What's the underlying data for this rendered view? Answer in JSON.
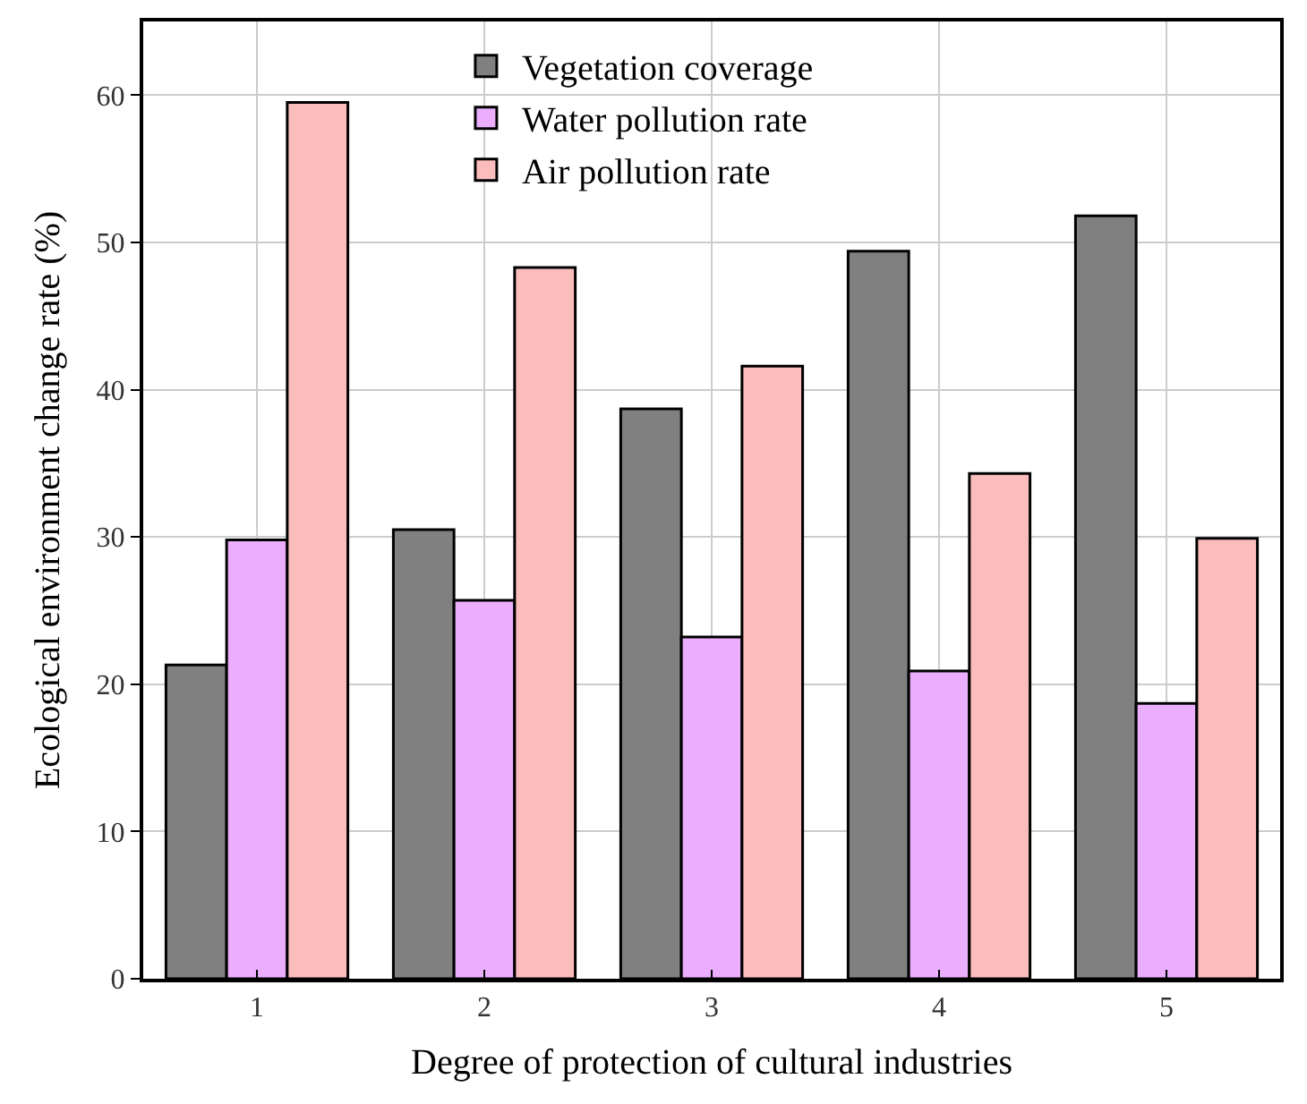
{
  "chart_data": {
    "type": "bar",
    "xlabel": "Degree of protection of cultural industries",
    "ylabel": "Ecological environment change rate (%)",
    "categories": [
      "1",
      "2",
      "3",
      "4",
      "5"
    ],
    "series": [
      {
        "name": "Vegetation coverage",
        "color": "#808080",
        "values": [
          21.3,
          30.5,
          38.7,
          49.4,
          51.8
        ]
      },
      {
        "name": "Water pollution rate",
        "color": "#eaaefc",
        "values": [
          29.8,
          25.7,
          23.2,
          20.9,
          18.7
        ]
      },
      {
        "name": "Air pollution rate",
        "color": "#fbbcbc",
        "values": [
          59.5,
          48.3,
          41.6,
          34.3,
          29.9
        ]
      }
    ],
    "ylim": [
      0,
      65
    ],
    "yticks": [
      0,
      10,
      20,
      30,
      40,
      50,
      60
    ],
    "grid": true,
    "legend": "top"
  }
}
